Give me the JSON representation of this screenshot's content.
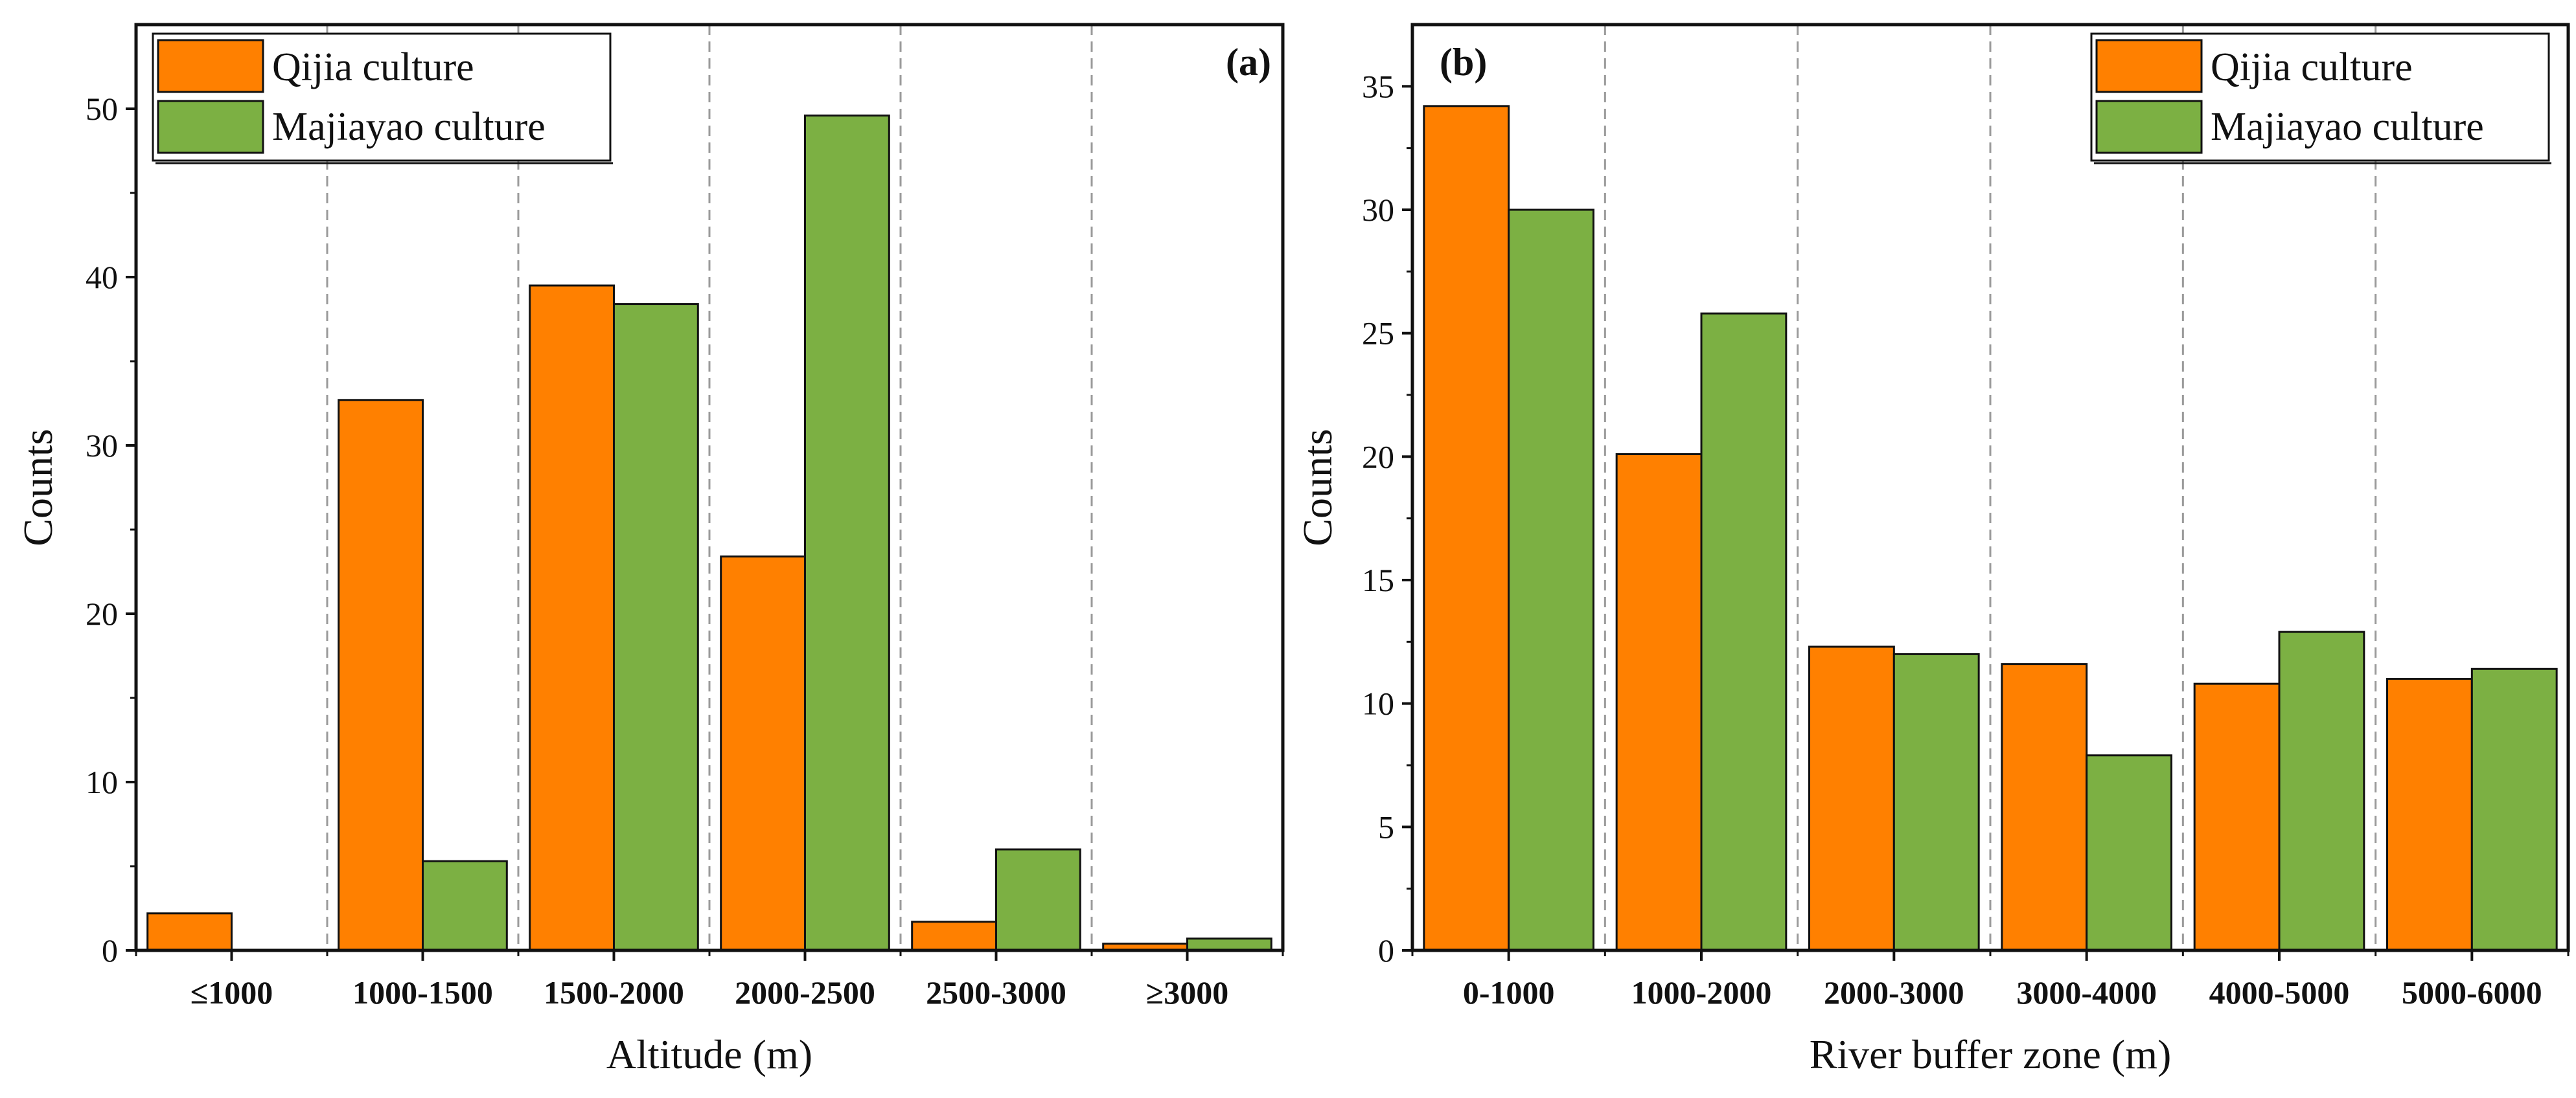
{
  "colors": {
    "qijia": "#ff8000",
    "majiayao": "#7cb043",
    "axis": "#111111",
    "gridline": "#9a9a9a"
  },
  "chart_data": [
    {
      "panel": "(a)",
      "type": "bar",
      "xlabel": "Altitude (m)",
      "ylabel": "Counts",
      "categories": [
        "≤1000",
        "1000-1500",
        "1500-2000",
        "2000-2500",
        "2500-3000",
        "≥3000"
      ],
      "series": [
        {
          "name": "Qijia culture",
          "values": [
            2.2,
            32.7,
            39.5,
            23.4,
            1.7,
            0.4
          ]
        },
        {
          "name": "Majiayao culture",
          "values": [
            0,
            5.3,
            38.4,
            49.6,
            6.0,
            0.7
          ]
        }
      ],
      "ylim": [
        0,
        55
      ],
      "yticks": [
        0,
        10,
        20,
        30,
        40,
        50
      ],
      "legend_position": "top-left",
      "separators": "dashed vertical lines between categories"
    },
    {
      "panel": "(b)",
      "type": "bar",
      "xlabel": "River buffer zone (m)",
      "ylabel": "Counts",
      "categories": [
        "0-1000",
        "1000-2000",
        "2000-3000",
        "3000-4000",
        "4000-5000",
        "5000-6000"
      ],
      "series": [
        {
          "name": "Qijia culture",
          "values": [
            34.2,
            20.1,
            12.3,
            11.6,
            10.8,
            11.0
          ]
        },
        {
          "name": "Majiayao culture",
          "values": [
            30.0,
            25.8,
            12.0,
            7.9,
            12.9,
            11.4
          ]
        }
      ],
      "ylim": [
        0,
        37.5
      ],
      "yticks": [
        0,
        5,
        10,
        15,
        20,
        25,
        30,
        35
      ],
      "legend_position": "top-right",
      "separators": "dashed vertical lines between categories"
    }
  ]
}
